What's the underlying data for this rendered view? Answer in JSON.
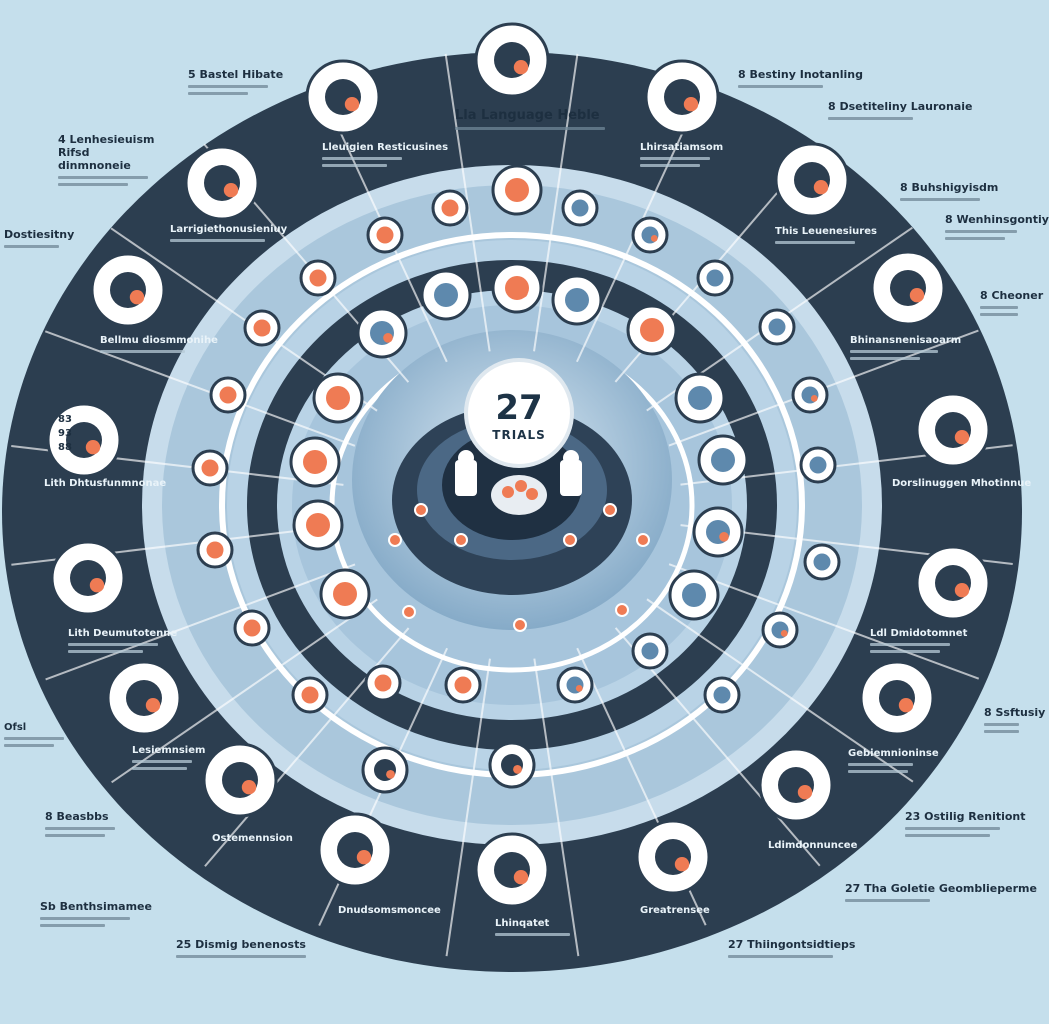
{
  "center": {
    "number": "27",
    "label": "TRIALS"
  },
  "header_label": "Lla Language Heble",
  "labels": {
    "outer_left": [
      "5 Bastel Hibate",
      "4 Lenhesieuism Rifsd dinmnoneie",
      "Dostiesitny",
      "Ofsl",
      "8 Beasbbs",
      "Sb Benthsimamee",
      "25 Dismig benenosts"
    ],
    "outer_right": [
      "8 Bestiny Inotanling",
      "8 Dsetiteliny Lauronaie",
      "8 Buhshigyisdm",
      "8 Wenhinsgontiy",
      "8 Cheoner",
      "8 Ssftusiy",
      "23 Ostilig Renitiont",
      "27 Tha Goletie Geomblieperme",
      "27 Thiingontsidtieps"
    ],
    "inner_dark": [
      "Lleuigien Resticusines",
      "Lhirsatiamsom",
      "Larrigiethonusieniuy",
      "This Leuenesiures",
      "Bellmu diosmmonihe",
      "Bhinansnenisaoarm",
      "Lith Dhtusfunmnonae",
      "Dorslinuggen Mhotinnue",
      "Lith Deumutotenne",
      "Ldl Dmidotomnet",
      "Lesiemnsiem",
      "Gebiemnioninse",
      "Ostemennsion",
      "Ldimdonnuncee",
      "Dnudsomsmoncee",
      "Lhinqatet",
      "Greatrensee"
    ],
    "side_codes": [
      "83",
      "93",
      "88"
    ]
  },
  "colors": {
    "background": "#c5dfec",
    "dark_ring": "#2c3e50",
    "mid_ring": "#5e89ad",
    "light_ring": "#a9c6da",
    "accent": "#ef7b54",
    "white": "#ffffff"
  },
  "icons": {
    "outer": [
      "people-icon",
      "clipboard-icon",
      "presentation-icon",
      "person-chart-icon",
      "document-icon",
      "lightbulb-icon",
      "group-icon",
      "tools-icon",
      "person-icon",
      "heart-icon",
      "checklist-icon",
      "monitor-icon",
      "heartbeat-icon",
      "bar-chart-icon",
      "browser-icon",
      "form-icon",
      "vials-icon",
      "speech-heart-icon",
      "doctors-icon",
      "hub-icon"
    ]
  }
}
